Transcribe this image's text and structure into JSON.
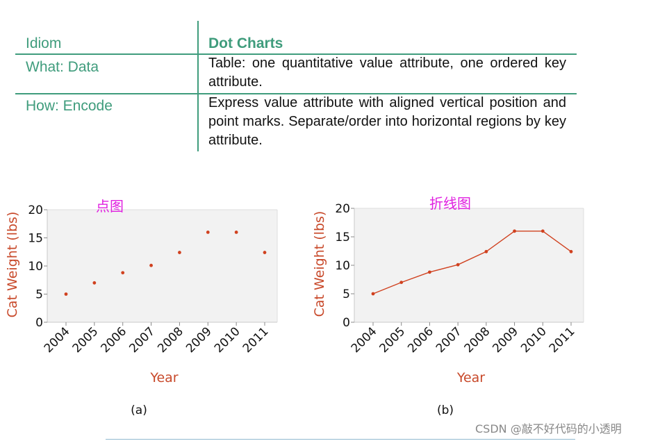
{
  "table": {
    "rows": [
      {
        "label": "Idiom",
        "value": "Dot Charts"
      },
      {
        "label": "What: Data",
        "value": "Table: one quantitative value attribute, one ordered key attribute."
      },
      {
        "label": "How: Encode",
        "value": "Express value attribute with aligned vertical position and point marks. Separate/order into horizontal regions by key attribute."
      }
    ]
  },
  "chart_data": [
    {
      "type": "scatter",
      "title": "点图",
      "sublabel": "(a)",
      "x": [
        "2004",
        "2005",
        "2006",
        "2007",
        "2008",
        "2009",
        "2010",
        "2011"
      ],
      "values": [
        5,
        7,
        8.8,
        10.1,
        12.4,
        16,
        16,
        12.4
      ],
      "xlabel": "Year",
      "ylabel": "Cat Weight (lbs)",
      "ylim": [
        0,
        20
      ],
      "yticks": [
        "0",
        "5",
        "10",
        "15",
        "20"
      ],
      "color": "#d0411f",
      "background": "#f2f2f2"
    },
    {
      "type": "line",
      "title": "折线图",
      "sublabel": "(b)",
      "x": [
        "2004",
        "2005",
        "2006",
        "2007",
        "2008",
        "2009",
        "2010",
        "2011"
      ],
      "values": [
        5,
        7,
        8.8,
        10.1,
        12.4,
        16,
        16,
        12.4
      ],
      "xlabel": "Year",
      "ylabel": "Cat Weight (lbs)",
      "ylim": [
        0,
        20
      ],
      "yticks": [
        "0",
        "5",
        "10",
        "15",
        "20"
      ],
      "color": "#d0411f",
      "background": "#f2f2f2"
    }
  ],
  "watermark": "CSDN @敲不好代码的小透明"
}
